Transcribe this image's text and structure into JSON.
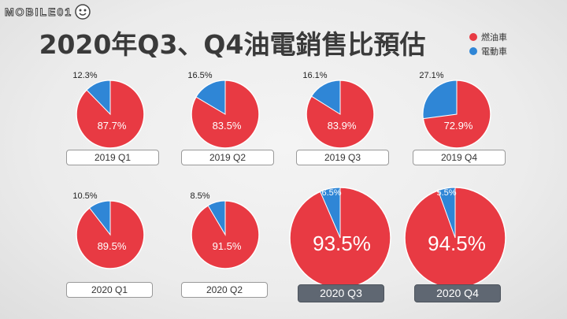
{
  "logo": {
    "text": "MOBILE01"
  },
  "title": "2020年Q3、Q4油電銷售比預估",
  "legend": [
    {
      "label": "燃油車",
      "color": "#e83a43"
    },
    {
      "label": "電動車",
      "color": "#2f86d6"
    }
  ],
  "chart_data": {
    "type": "pie",
    "series_names": [
      "燃油車",
      "電動車"
    ],
    "colors": {
      "gas": "#e83a43",
      "ev": "#2f86d6"
    },
    "pies": [
      {
        "label": "2019 Q1",
        "gas": 87.7,
        "ev": 12.3,
        "gas_label": "87.7%",
        "ev_label": "12.3%"
      },
      {
        "label": "2019 Q2",
        "gas": 83.5,
        "ev": 16.5,
        "gas_label": "83.5%",
        "ev_label": "16.5%"
      },
      {
        "label": "2019 Q3",
        "gas": 83.9,
        "ev": 16.1,
        "gas_label": "83.9%",
        "ev_label": "16.1%"
      },
      {
        "label": "2019 Q4",
        "gas": 72.9,
        "ev": 27.1,
        "gas_label": "72.9%",
        "ev_label": "27.1%"
      },
      {
        "label": "2020 Q1",
        "gas": 89.5,
        "ev": 10.5,
        "gas_label": "89.5%",
        "ev_label": "10.5%"
      },
      {
        "label": "2020 Q2",
        "gas": 91.5,
        "ev": 8.5,
        "gas_label": "91.5%",
        "ev_label": "8.5%"
      },
      {
        "label": "2020 Q3",
        "gas": 93.5,
        "ev": 6.5,
        "gas_label": "93.5%",
        "ev_label": "6.5%",
        "highlight": true
      },
      {
        "label": "2020 Q4",
        "gas": 94.5,
        "ev": 5.5,
        "gas_label": "94.5%",
        "ev_label": "5.5%",
        "highlight": true
      }
    ]
  }
}
